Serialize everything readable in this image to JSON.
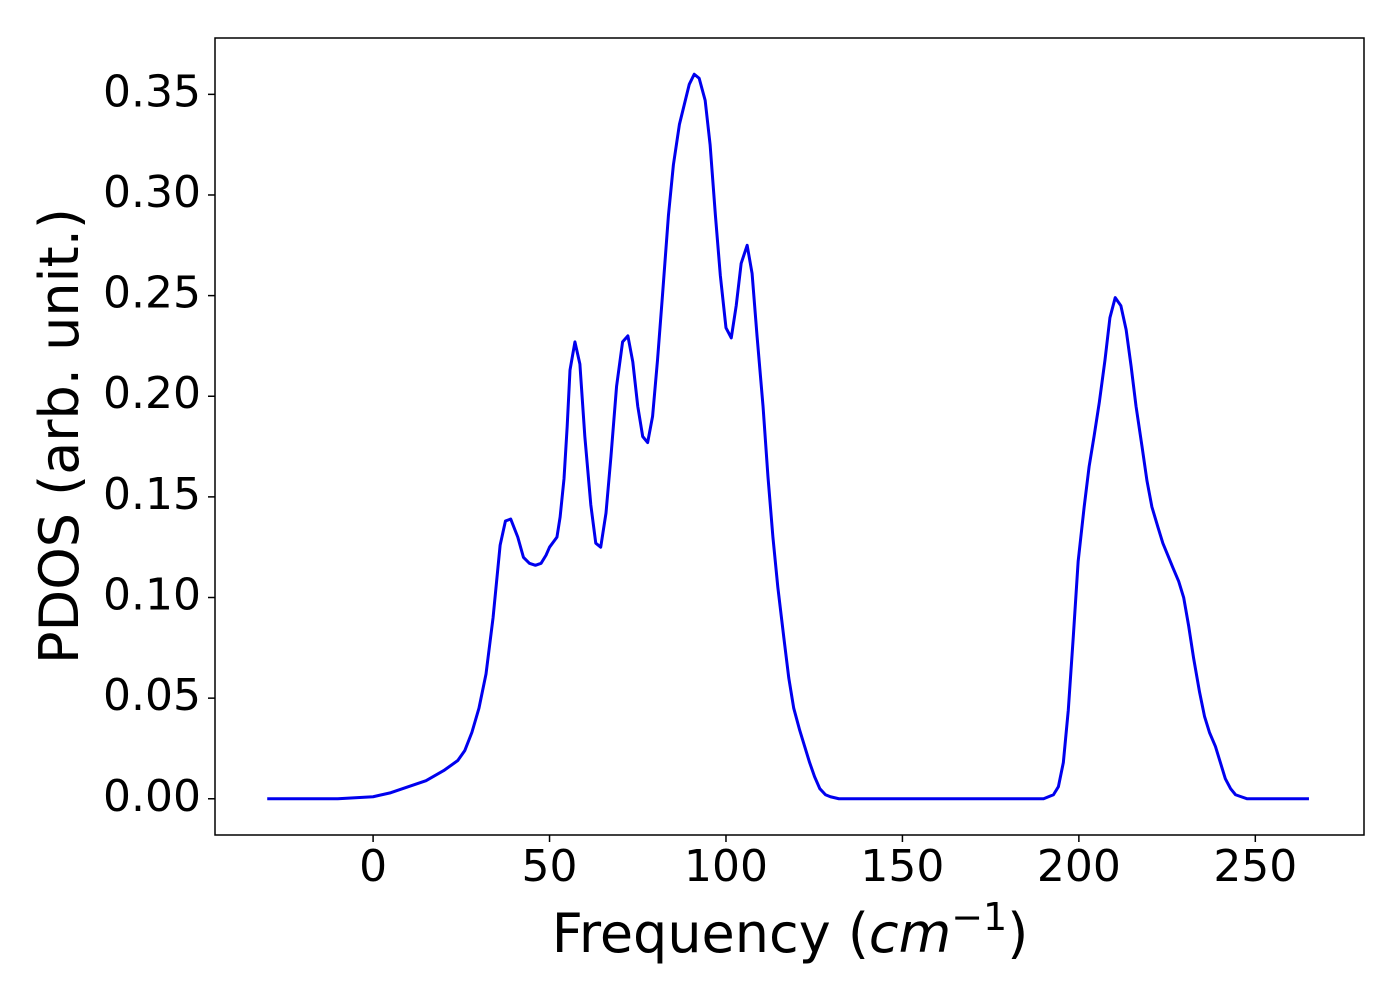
{
  "chart_data": {
    "type": "line",
    "y_label": "PDOS (arb. unit.)",
    "x_label": [
      "Frequency (",
      "cm",
      "−1",
      ")"
    ],
    "xlim": [
      -44.8,
      280.8
    ],
    "ylim": [
      -0.018,
      0.378
    ],
    "xticks": [
      0,
      50,
      100,
      150,
      200,
      250
    ],
    "yticks": [
      {
        "value": 0,
        "label": "0.00"
      },
      {
        "value": 0.05,
        "label": "0.05"
      },
      {
        "value": 0.1,
        "label": "0.10"
      },
      {
        "value": 0.15,
        "label": "0.15"
      },
      {
        "value": 0.2,
        "label": "0.20"
      },
      {
        "value": 0.25,
        "label": "0.25"
      },
      {
        "value": 0.3,
        "label": "0.30"
      },
      {
        "value": 0.35,
        "label": "0.35"
      }
    ],
    "grid": false,
    "x": [
      -30,
      -10,
      0,
      5,
      10,
      15,
      20,
      24,
      26,
      28,
      30,
      32,
      34,
      35,
      36,
      37.5,
      39,
      41,
      42.6,
      44.3,
      46,
      47.6,
      49,
      50,
      52.1,
      53,
      54.1,
      55,
      55.8,
      57.2,
      58.6,
      60,
      61.7,
      63.1,
      64.5,
      66,
      67.4,
      69,
      70.7,
      72.2,
      73.6,
      75,
      76.4,
      77.8,
      79.2,
      80.6,
      82,
      83.7,
      85.1,
      86.8,
      88.2,
      89.6,
      91,
      92.4,
      94.1,
      95.5,
      97,
      98.4,
      100,
      101.5,
      102.9,
      104.3,
      106,
      107.4,
      108.8,
      110.5,
      111.9,
      113.3,
      114.7,
      116.4,
      117.8,
      119.2,
      120.9,
      122.3,
      123.7,
      125.1,
      126.6,
      128.2,
      129.6,
      132,
      190,
      191.4,
      192.8,
      194.2,
      195.6,
      197,
      198.4,
      199.8,
      201.5,
      202.9,
      204.3,
      205.8,
      207.4,
      208.8,
      210.3,
      211.9,
      213.4,
      214.8,
      216.2,
      217.9,
      219.3,
      220.7,
      222.4,
      223.8,
      225.2,
      226.6,
      228.3,
      229.7,
      231.1,
      232.5,
      234.2,
      235.6,
      237,
      238.7,
      240.1,
      241.5,
      243,
      244.4,
      246,
      247.7,
      265.2
    ],
    "series": [
      {
        "name": "PDOS",
        "color": "#0000ee",
        "values": [
          0,
          0,
          0.001,
          0.003,
          0.006,
          0.009,
          0.014,
          0.019,
          0.024,
          0.033,
          0.045,
          0.062,
          0.09,
          0.108,
          0.126,
          0.138,
          0.139,
          0.13,
          0.12,
          0.117,
          0.116,
          0.117,
          0.121,
          0.125,
          0.13,
          0.14,
          0.159,
          0.185,
          0.213,
          0.227,
          0.216,
          0.18,
          0.146,
          0.127,
          0.125,
          0.142,
          0.17,
          0.205,
          0.227,
          0.23,
          0.217,
          0.195,
          0.18,
          0.177,
          0.19,
          0.218,
          0.25,
          0.29,
          0.315,
          0.335,
          0.345,
          0.355,
          0.36,
          0.358,
          0.347,
          0.325,
          0.29,
          0.26,
          0.234,
          0.229,
          0.245,
          0.266,
          0.275,
          0.261,
          0.23,
          0.195,
          0.16,
          0.13,
          0.105,
          0.08,
          0.06,
          0.045,
          0.034,
          0.026,
          0.018,
          0.011,
          0.005,
          0.002,
          0.001,
          0,
          0,
          0.001,
          0.002,
          0.006,
          0.018,
          0.044,
          0.08,
          0.118,
          0.145,
          0.165,
          0.18,
          0.197,
          0.218,
          0.239,
          0.249,
          0.245,
          0.233,
          0.215,
          0.195,
          0.175,
          0.158,
          0.145,
          0.135,
          0.127,
          0.121,
          0.115,
          0.108,
          0.1,
          0.086,
          0.07,
          0.053,
          0.041,
          0.033,
          0.026,
          0.018,
          0.01,
          0.005,
          0.002,
          0.001,
          0,
          0
        ]
      }
    ]
  }
}
